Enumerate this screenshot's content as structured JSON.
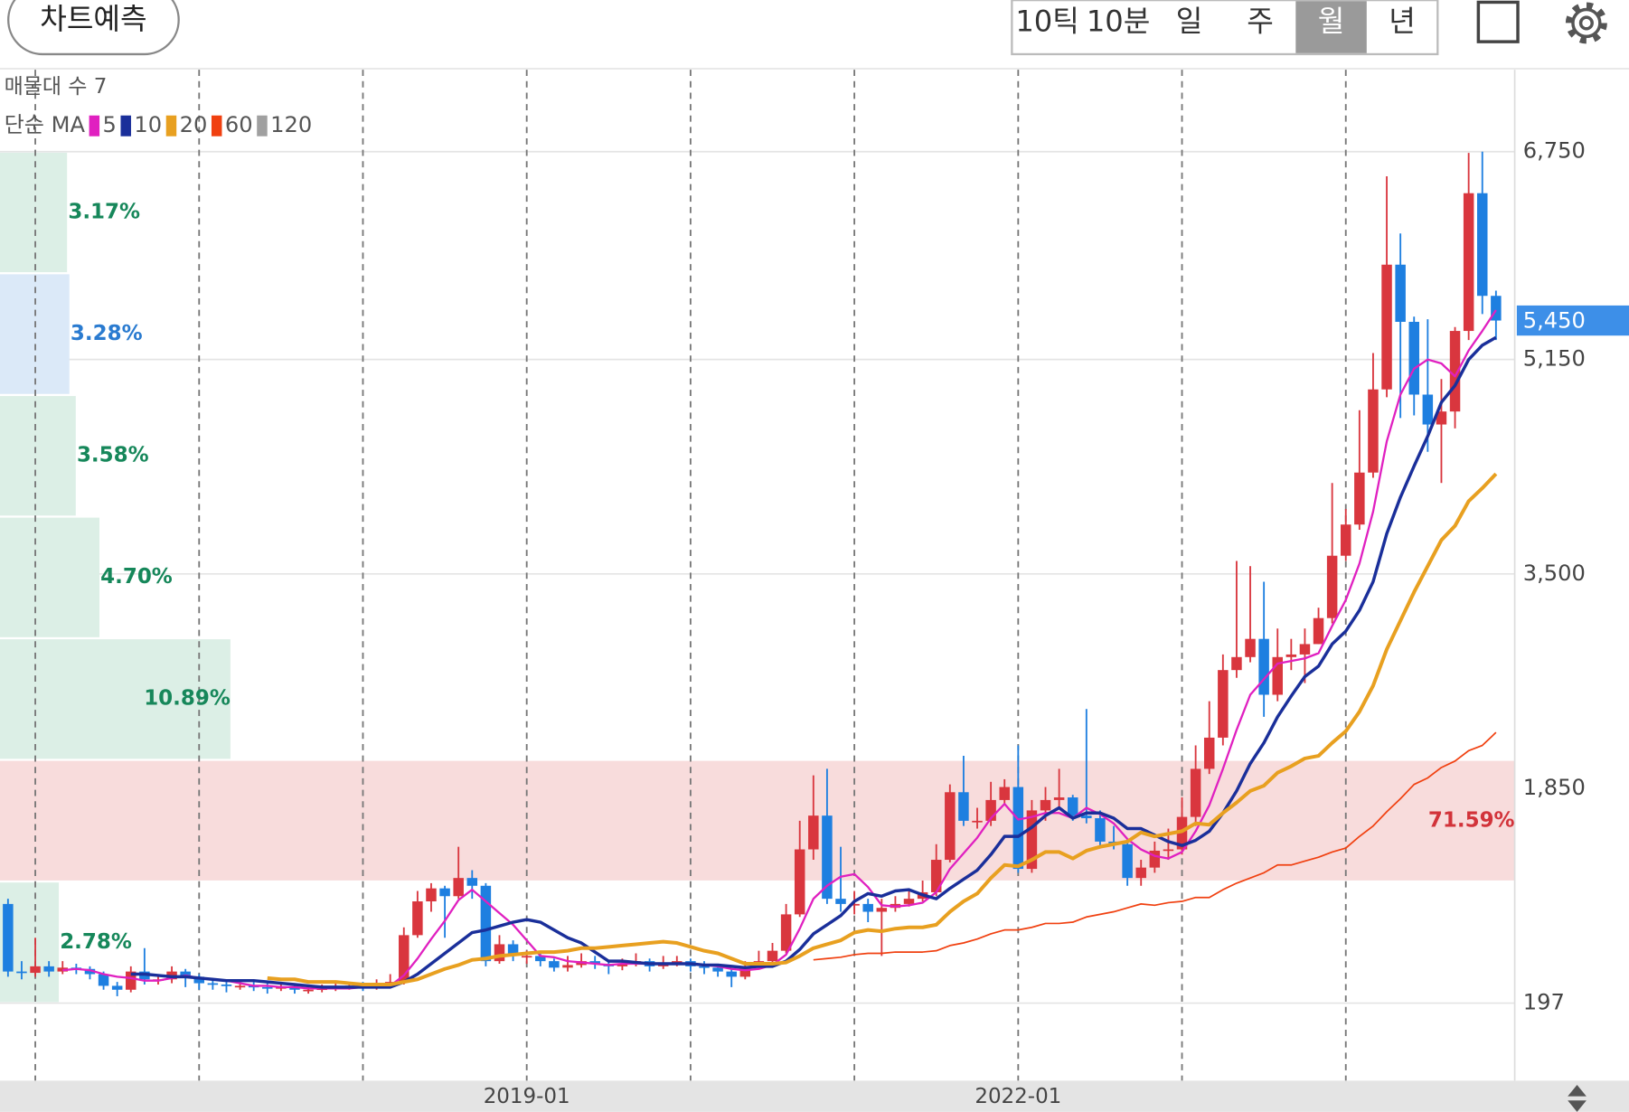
{
  "ui": {
    "predict_button": "차트예측",
    "tabs": [
      "10틱",
      "10분",
      "일",
      "주",
      "월",
      "년"
    ],
    "selected_tab": 4
  },
  "chart_data": {
    "type": "candlestick",
    "categories": [
      null,
      null,
      null,
      null,
      null,
      null,
      null,
      null,
      null,
      null,
      null,
      null,
      null,
      null,
      null,
      null,
      null,
      null,
      null,
      null,
      null,
      null,
      null,
      null,
      null,
      null,
      null,
      null,
      null,
      null,
      null,
      null,
      null,
      null,
      null,
      null,
      null,
      null,
      "2019-01",
      null,
      null,
      null,
      null,
      null,
      null,
      null,
      null,
      null,
      null,
      null,
      null,
      null,
      null,
      null,
      null,
      null,
      null,
      null,
      null,
      null,
      null,
      null,
      null,
      null,
      null,
      null,
      null,
      null,
      null,
      null,
      null,
      null,
      null,
      null,
      "2022-01",
      null,
      null,
      null,
      null,
      null,
      null,
      null,
      null,
      null,
      null,
      null,
      null,
      null,
      null,
      null,
      null,
      null,
      null,
      null,
      null,
      null,
      null,
      null,
      null,
      null,
      null,
      null,
      null,
      null,
      null,
      null,
      null,
      null,
      null,
      null
    ],
    "open": [
      960,
      440,
      430,
      480,
      440,
      470,
      460,
      420,
      330,
      300,
      440,
      380,
      380,
      440,
      400,
      350,
      340,
      330,
      330,
      320,
      310,
      320,
      300,
      300,
      310,
      320,
      330,
      320,
      330,
      360,
      720,
      980,
      1080,
      1020,
      1160,
      1100,
      520,
      650,
      560,
      560,
      520,
      470,
      490,
      520,
      500,
      480,
      500,
      520,
      480,
      500,
      520,
      480,
      470,
      440,
      400,
      470,
      520,
      600,
      880,
      1380,
      1640,
      1000,
      960,
      960,
      900,
      930,
      960,
      1000,
      1050,
      1300,
      1820,
      1600,
      1600,
      1760,
      1860,
      1230,
      1680,
      1760,
      1780,
      1640,
      1620,
      1440,
      1420,
      1160,
      1240,
      1370,
      1380,
      1630,
      2000,
      2240,
      2760,
      2860,
      3000,
      2570,
      2860,
      2880,
      2960,
      3160,
      3640,
      3880,
      4280,
      4920,
      5880,
      5440,
      4880,
      4650,
      4750,
      5370,
      6430,
      5640
    ],
    "high": [
      1000,
      520,
      700,
      520,
      520,
      500,
      480,
      440,
      360,
      480,
      620,
      420,
      480,
      460,
      420,
      380,
      360,
      380,
      360,
      350,
      360,
      340,
      340,
      340,
      350,
      360,
      360,
      380,
      420,
      780,
      1060,
      1120,
      1100,
      1400,
      1220,
      1120,
      720,
      680,
      600,
      580,
      540,
      560,
      580,
      560,
      520,
      540,
      580,
      540,
      560,
      560,
      540,
      520,
      500,
      460,
      520,
      600,
      660,
      960,
      1600,
      1950,
      2000,
      1400,
      1060,
      1000,
      1000,
      1020,
      1060,
      1140,
      1420,
      1880,
      2100,
      1700,
      1900,
      1920,
      2180,
      1760,
      1860,
      2000,
      1800,
      2460,
      1680,
      1560,
      1460,
      1300,
      1440,
      1540,
      1780,
      2180,
      2520,
      2880,
      3600,
      3560,
      3440,
      3080,
      3000,
      3080,
      3240,
      4200,
      4000,
      4760,
      5200,
      6560,
      6120,
      5480,
      5460,
      5000,
      5400,
      6740,
      6750,
      5680
    ],
    "low": [
      400,
      380,
      400,
      400,
      420,
      420,
      380,
      300,
      250,
      280,
      340,
      340,
      350,
      320,
      300,
      300,
      280,
      300,
      290,
      270,
      290,
      270,
      270,
      280,
      290,
      300,
      290,
      300,
      320,
      340,
      700,
      900,
      700,
      1000,
      1000,
      480,
      500,
      520,
      500,
      480,
      440,
      440,
      470,
      460,
      420,
      450,
      480,
      440,
      460,
      480,
      440,
      420,
      400,
      320,
      380,
      460,
      500,
      580,
      860,
      1300,
      960,
      900,
      880,
      820,
      560,
      900,
      940,
      980,
      1020,
      1280,
      1560,
      1540,
      1560,
      1720,
      1200,
      1200,
      1600,
      1700,
      1600,
      1580,
      1400,
      1380,
      1100,
      1100,
      1200,
      1300,
      1340,
      1560,
      1960,
      2180,
      2700,
      2820,
      2400,
      2520,
      2760,
      2660,
      2960,
      3120,
      3600,
      3840,
      4240,
      4860,
      4700,
      4720,
      4440,
      4200,
      4620,
      5300,
      5500,
      5300
    ],
    "close": [
      440,
      430,
      480,
      440,
      470,
      460,
      420,
      330,
      300,
      440,
      380,
      380,
      440,
      400,
      350,
      340,
      330,
      330,
      320,
      310,
      320,
      300,
      300,
      310,
      320,
      330,
      320,
      330,
      360,
      720,
      980,
      1080,
      1020,
      1160,
      1100,
      520,
      650,
      560,
      560,
      520,
      470,
      490,
      520,
      500,
      480,
      500,
      520,
      480,
      500,
      520,
      480,
      470,
      440,
      400,
      470,
      520,
      600,
      880,
      1380,
      1640,
      1000,
      960,
      960,
      900,
      930,
      960,
      1000,
      1050,
      1300,
      1820,
      1600,
      1600,
      1760,
      1860,
      1230,
      1680,
      1760,
      1780,
      1640,
      1620,
      1440,
      1420,
      1160,
      1240,
      1370,
      1380,
      1630,
      2000,
      2240,
      2760,
      2860,
      3000,
      2570,
      2860,
      2880,
      2960,
      3160,
      3640,
      3880,
      4280,
      4920,
      5880,
      5440,
      4880,
      4650,
      4750,
      5370,
      6430,
      5640,
      5450
    ],
    "up_color": "#d9363e",
    "down_color": "#1e7fe0",
    "ma_label": "단순 MA",
    "series": [
      {
        "name": "5",
        "color": "#e020c0",
        "values": [
          null,
          null,
          null,
          null,
          450,
          460,
          450,
          420,
          400,
          390,
          370,
          370,
          390,
          410,
          390,
          380,
          370,
          350,
          330,
          330,
          320,
          320,
          310,
          310,
          310,
          310,
          320,
          320,
          330,
          410,
          540,
          690,
          830,
          990,
          1070,
          980,
          890,
          800,
          680,
          560,
          550,
          520,
          510,
          500,
          490,
          500,
          500,
          500,
          500,
          500,
          500,
          490,
          480,
          460,
          450,
          460,
          490,
          570,
          770,
          1000,
          1100,
          1170,
          1190,
          1090,
          950,
          940,
          950,
          970,
          1050,
          1230,
          1350,
          1470,
          1620,
          1730,
          1610,
          1630,
          1660,
          1660,
          1620,
          1700,
          1650,
          1580,
          1460,
          1380,
          1330,
          1310,
          1360,
          1520,
          1720,
          2000,
          2300,
          2570,
          2690,
          2810,
          2830,
          2850,
          2890,
          3100,
          3300,
          3580,
          3980,
          4520,
          4880,
          5080,
          5150,
          5120,
          5020,
          5220,
          5370,
          5530
        ]
      },
      {
        "name": "10",
        "color": "#1a2f9a",
        "values": [
          null,
          null,
          null,
          null,
          null,
          null,
          null,
          null,
          null,
          420,
          420,
          410,
          400,
          400,
          390,
          380,
          370,
          370,
          370,
          360,
          350,
          340,
          330,
          320,
          320,
          320,
          320,
          320,
          320,
          360,
          420,
          500,
          580,
          660,
          740,
          760,
          790,
          820,
          840,
          820,
          760,
          700,
          660,
          590,
          520,
          520,
          510,
          500,
          500,
          500,
          500,
          490,
          490,
          480,
          470,
          480,
          480,
          520,
          610,
          730,
          800,
          870,
          980,
          1040,
          1020,
          1060,
          1070,
          1030,
          1000,
          1080,
          1150,
          1220,
          1340,
          1480,
          1480,
          1550,
          1640,
          1700,
          1620,
          1660,
          1660,
          1620,
          1540,
          1540,
          1490,
          1440,
          1410,
          1450,
          1520,
          1660,
          1830,
          2040,
          2200,
          2400,
          2560,
          2710,
          2790,
          2960,
          3060,
          3220,
          3440,
          3810,
          4090,
          4330,
          4560,
          4820,
          4950,
          5150,
          5260,
          5320
        ]
      },
      {
        "name": "20",
        "color": "#e8a020",
        "values": [
          null,
          null,
          null,
          null,
          null,
          null,
          null,
          null,
          null,
          null,
          null,
          null,
          null,
          null,
          null,
          null,
          null,
          null,
          null,
          390,
          380,
          380,
          360,
          360,
          360,
          350,
          340,
          340,
          340,
          360,
          380,
          420,
          460,
          490,
          530,
          540,
          560,
          570,
          580,
          590,
          590,
          600,
          620,
          620,
          630,
          640,
          650,
          660,
          670,
          660,
          630,
          600,
          580,
          540,
          500,
          500,
          500,
          510,
          560,
          620,
          650,
          680,
          740,
          760,
          750,
          770,
          780,
          780,
          800,
          900,
          980,
          1040,
          1160,
          1260,
          1250,
          1300,
          1360,
          1360,
          1310,
          1370,
          1400,
          1420,
          1440,
          1510,
          1480,
          1500,
          1520,
          1580,
          1570,
          1660,
          1740,
          1830,
          1870,
          1970,
          2020,
          2080,
          2100,
          2200,
          2290,
          2440,
          2640,
          2920,
          3140,
          3360,
          3560,
          3760,
          3870,
          4060,
          4160,
          4270
        ]
      },
      {
        "name": "60",
        "color": "#f04010",
        "values": [
          null,
          null,
          null,
          null,
          null,
          null,
          null,
          null,
          null,
          null,
          null,
          null,
          null,
          null,
          null,
          null,
          null,
          null,
          null,
          null,
          null,
          null,
          null,
          null,
          null,
          null,
          null,
          null,
          null,
          null,
          null,
          null,
          null,
          null,
          null,
          null,
          null,
          null,
          null,
          null,
          null,
          null,
          null,
          null,
          null,
          null,
          null,
          null,
          null,
          null,
          null,
          null,
          null,
          null,
          null,
          null,
          null,
          null,
          null,
          530,
          540,
          550,
          570,
          580,
          580,
          590,
          590,
          590,
          600,
          640,
          660,
          690,
          730,
          760,
          760,
          780,
          810,
          810,
          820,
          860,
          880,
          900,
          930,
          960,
          950,
          970,
          980,
          1010,
          1010,
          1070,
          1120,
          1160,
          1200,
          1260,
          1260,
          1290,
          1320,
          1360,
          1390,
          1480,
          1560,
          1670,
          1770,
          1880,
          1930,
          2010,
          2060,
          2140,
          2180,
          2280
        ]
      },
      {
        "name": "120",
        "color": "#a0a0a0",
        "values": [
          null,
          null,
          null,
          null,
          null,
          null,
          null,
          null,
          null,
          null,
          null,
          null,
          null,
          null,
          null,
          null,
          null,
          null,
          null,
          null,
          null,
          null,
          null,
          null,
          null,
          null,
          null,
          null,
          null,
          null,
          null,
          null,
          null,
          null,
          null,
          null,
          null,
          null,
          null,
          null,
          null,
          null,
          null,
          null,
          null,
          null,
          null,
          null,
          null,
          null,
          null,
          null,
          null,
          null,
          null,
          null,
          null,
          null,
          null,
          null,
          null,
          null,
          null,
          null,
          null,
          null,
          null,
          null,
          null,
          null,
          null,
          null,
          null,
          null,
          null,
          null,
          null,
          null,
          null,
          null,
          null,
          null,
          null,
          null,
          null,
          null,
          null,
          null,
          null,
          null,
          null,
          null,
          null,
          null,
          null,
          null,
          null,
          null,
          null,
          null,
          null,
          null,
          null,
          null,
          null,
          null,
          null,
          null,
          null,
          null
        ]
      }
    ],
    "volume_profile": {
      "title": "매물대 수 7",
      "bins": [
        197,
        1133,
        2069,
        3005,
        3941,
        4877,
        5814,
        6750
      ],
      "values": [
        2.78,
        71.59,
        10.89,
        4.7,
        3.58,
        3.28,
        3.17
      ],
      "value_labels": [
        "2.78%",
        "71.59%",
        "10.89%",
        "4.70%",
        "3.58%",
        "3.28%",
        "3.17%"
      ],
      "colors": [
        "#dcefe6",
        "#f8dcdc",
        "#dcefe6",
        "#dcefe6",
        "#dcefe6",
        "#dbe9f8",
        "#dcefe6"
      ],
      "label_colors": [
        "#16875a",
        "#d2333a",
        "#16875a",
        "#16875a",
        "#16875a",
        "#2a7bd0",
        "#16875a"
      ]
    },
    "ylim": [
      -400,
      7380
    ],
    "yticks": [
      197,
      {
        "value": 1850,
        "label": "1,850"
      },
      {
        "value": 3500,
        "label": "3,500"
      },
      {
        "value": 5150,
        "label": "5,150"
      },
      {
        "value": 6750,
        "label": "6,750"
      }
    ],
    "grid": true,
    "last_price": {
      "value": 5450,
      "label": "5,450",
      "color": "#3d8fe8"
    }
  }
}
